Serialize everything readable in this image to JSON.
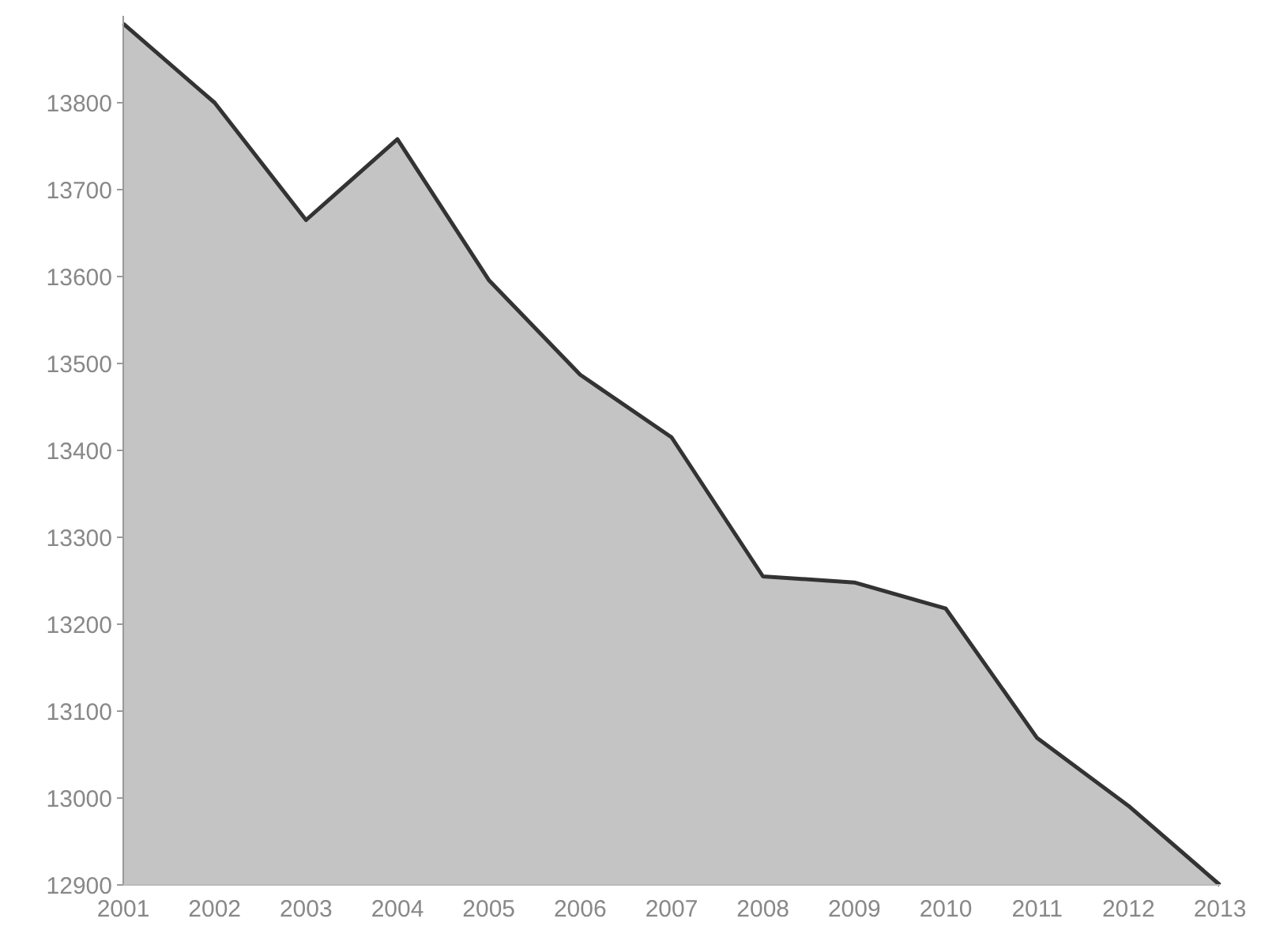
{
  "chart_data": {
    "type": "area",
    "x": [
      2001,
      2002,
      2003,
      2004,
      2005,
      2006,
      2007,
      2008,
      2009,
      2010,
      2011,
      2012,
      2013
    ],
    "series": [
      {
        "color": "#c4c4c4",
        "values": [
          13891,
          13800,
          13665,
          13758,
          13596,
          13487,
          13415,
          13255,
          13248,
          13218,
          13069,
          12991,
          12900
        ]
      }
    ],
    "xlim": [
      2001,
      2013
    ],
    "xticks": [
      2001,
      2002,
      2003,
      2004,
      2005,
      2006,
      2007,
      2008,
      2009,
      2010,
      2011,
      2012,
      2013
    ],
    "ylim": [
      12900,
      13900
    ],
    "yticks": [
      12900,
      13000,
      13100,
      13200,
      13300,
      13400,
      13500,
      13600,
      13700,
      13800
    ],
    "grid": false
  }
}
